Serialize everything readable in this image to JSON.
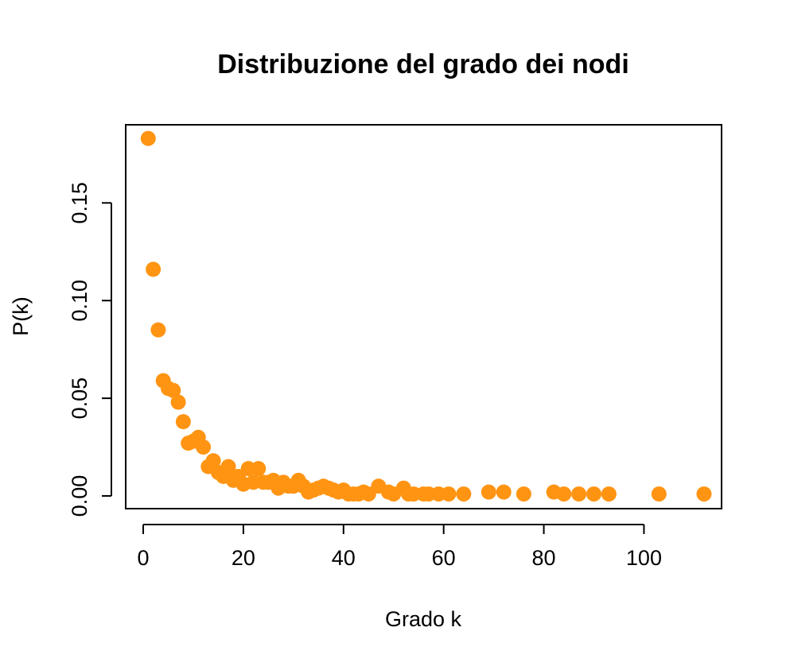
{
  "chart_data": {
    "type": "scatter",
    "title": "Distribuzione del grado dei nodi",
    "xlabel": "Grado k",
    "ylabel": "P(k)",
    "xlim": [
      -3.5,
      115.5
    ],
    "ylim": [
      -0.0065,
      0.19
    ],
    "xticks": [
      0,
      20,
      40,
      60,
      80,
      100
    ],
    "xtick_labels": [
      "0",
      "20",
      "40",
      "60",
      "80",
      "100"
    ],
    "yticks": [
      0.0,
      0.05,
      0.1,
      0.15
    ],
    "ytick_labels": [
      "0.00",
      "0.05",
      "0.10",
      "0.15"
    ],
    "grid": false,
    "legend": "none",
    "point_color": "#FF9412",
    "x": [
      1,
      2,
      3,
      4,
      5,
      6,
      7,
      8,
      9,
      10,
      11,
      12,
      13,
      14,
      15,
      16,
      17,
      18,
      19,
      20,
      21,
      22,
      23,
      24,
      25,
      26,
      27,
      28,
      29,
      30,
      31,
      32,
      33,
      34,
      35,
      36,
      37,
      38,
      39,
      40,
      41,
      42,
      43,
      44,
      45,
      47,
      49,
      50,
      52,
      53,
      54,
      56,
      57,
      59,
      61,
      64,
      69,
      72,
      76,
      82,
      84,
      87,
      90,
      93,
      103,
      112
    ],
    "y": [
      0.183,
      0.116,
      0.085,
      0.059,
      0.055,
      0.054,
      0.048,
      0.038,
      0.027,
      0.028,
      0.03,
      0.025,
      0.015,
      0.018,
      0.012,
      0.01,
      0.015,
      0.008,
      0.01,
      0.006,
      0.014,
      0.007,
      0.014,
      0.007,
      0.007,
      0.008,
      0.004,
      0.007,
      0.005,
      0.005,
      0.008,
      0.005,
      0.002,
      0.003,
      0.004,
      0.005,
      0.004,
      0.003,
      0.002,
      0.003,
      0.001,
      0.001,
      0.001,
      0.002,
      0.001,
      0.005,
      0.002,
      0.001,
      0.004,
      0.001,
      0.001,
      0.001,
      0.001,
      0.001,
      0.001,
      0.001,
      0.002,
      0.002,
      0.001,
      0.002,
      0.001,
      0.001,
      0.001,
      0.001,
      0.001,
      0.001
    ]
  }
}
